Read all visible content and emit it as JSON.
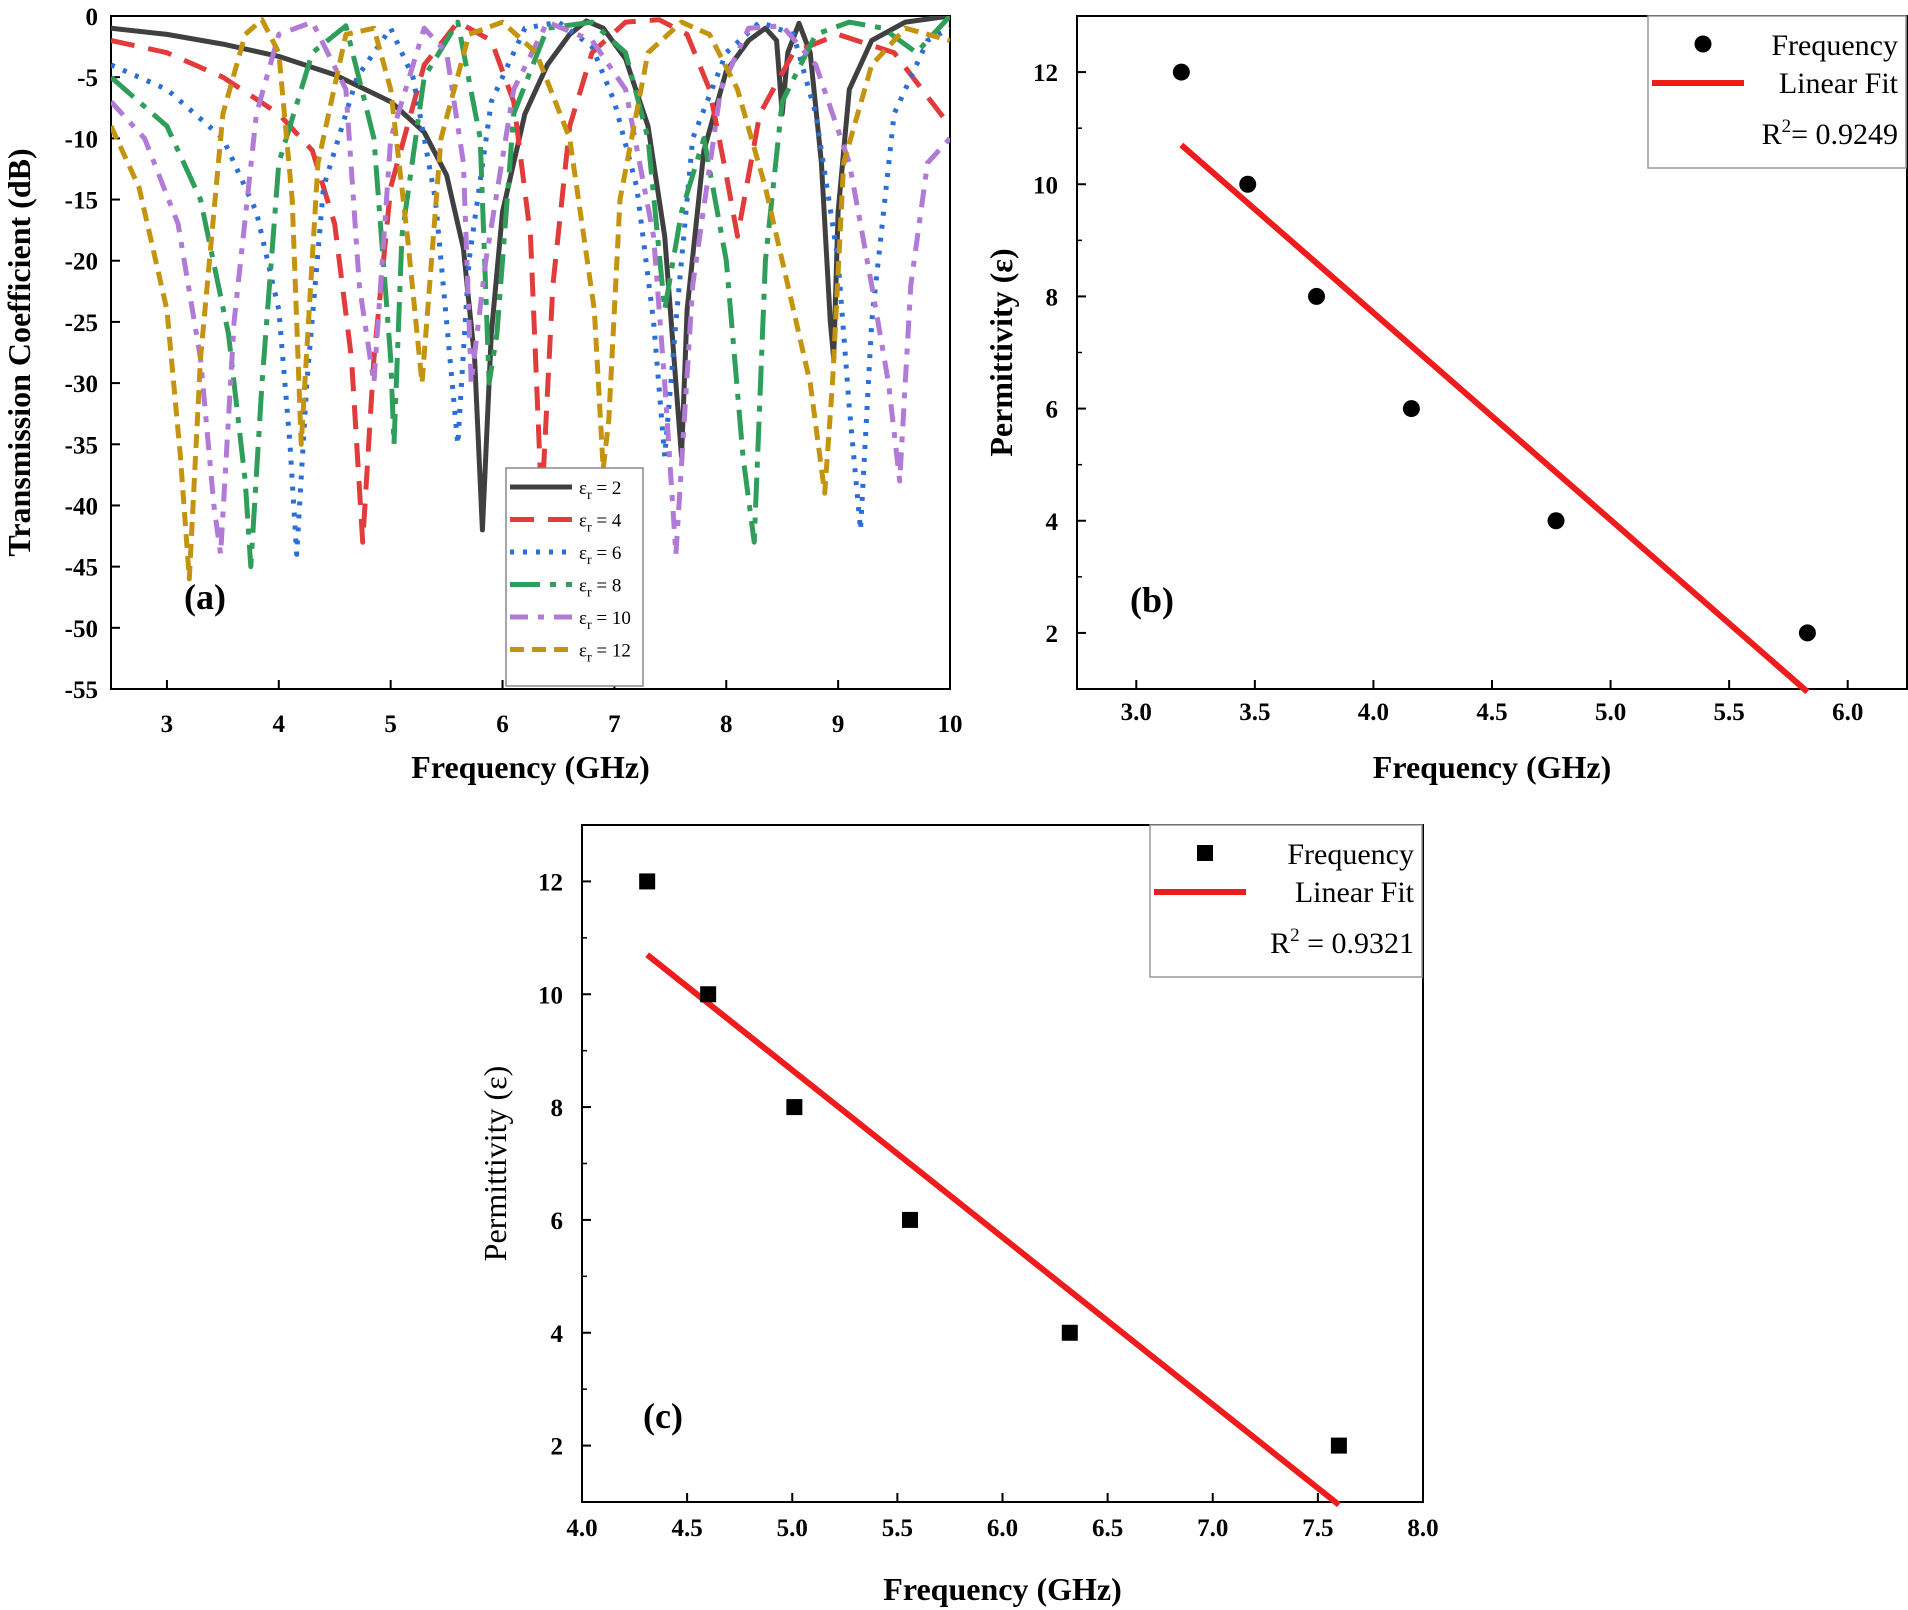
{
  "chart_data": [
    {
      "id": "a",
      "type": "line",
      "panel_label": "(a)",
      "xlabel": "Frequency (GHz)",
      "ylabel": "Transmission Coefficient (dB)",
      "xlim": [
        2.5,
        10
      ],
      "ylim": [
        -55,
        0
      ],
      "xticks": [
        3,
        4,
        5,
        6,
        7,
        8,
        9,
        10
      ],
      "yticks": [
        0,
        -5,
        -10,
        -15,
        -20,
        -25,
        -30,
        -35,
        -40,
        -45,
        -50,
        -55
      ],
      "legend_position": "bottom-center",
      "series": [
        {
          "name": "εr = 2",
          "sub": "r",
          "sym": "ε",
          "val": " = 2",
          "color": "#404040",
          "dash": "solid",
          "width": 5,
          "x": [
            2.5,
            3.0,
            3.5,
            4.0,
            4.5,
            5.0,
            5.3,
            5.5,
            5.65,
            5.75,
            5.82,
            5.9,
            6.0,
            6.2,
            6.4,
            6.6,
            6.75,
            6.9,
            7.1,
            7.3,
            7.45,
            7.55,
            7.6,
            7.65,
            7.8,
            8.0,
            8.2,
            8.35,
            8.45,
            8.5,
            8.55,
            8.65,
            8.75,
            8.85,
            8.93,
            8.96,
            9.0,
            9.1,
            9.3,
            9.6,
            10.0
          ],
          "y": [
            -1,
            -1.5,
            -2.3,
            -3.3,
            -4.8,
            -7,
            -9.5,
            -13,
            -19,
            -28,
            -42,
            -26,
            -16,
            -8,
            -4,
            -1.5,
            -0.4,
            -1,
            -3.5,
            -9,
            -18,
            -30,
            -36,
            -24,
            -11,
            -4.5,
            -2,
            -1,
            -2,
            -8,
            -3,
            -0.6,
            -3,
            -12,
            -25,
            -28,
            -16,
            -6,
            -2,
            -0.5,
            0
          ]
        },
        {
          "name": "εr = 4",
          "sub": "r",
          "sym": "ε",
          "val": " = 4",
          "color": "#e23b3b",
          "dash": "24,14",
          "width": 5,
          "x": [
            2.5,
            3.0,
            3.5,
            4.0,
            4.3,
            4.5,
            4.65,
            4.75,
            4.85,
            5.0,
            5.3,
            5.6,
            5.9,
            6.1,
            6.25,
            6.35,
            6.45,
            6.6,
            6.8,
            7.1,
            7.4,
            7.65,
            7.85,
            8.0,
            8.1,
            8.3,
            8.6,
            9.0,
            9.5,
            10.0
          ],
          "y": [
            -2,
            -3,
            -5,
            -8,
            -11,
            -17,
            -28,
            -43,
            -28,
            -14,
            -4,
            -0.5,
            -2,
            -7,
            -18,
            -40,
            -22,
            -9,
            -3,
            -0.5,
            -0.3,
            -1.5,
            -6,
            -13,
            -18,
            -8,
            -3,
            -1.5,
            -3,
            -9
          ]
        },
        {
          "name": "εr = 6",
          "sub": "r",
          "sym": "ε",
          "val": " = 6",
          "color": "#2a6fd6",
          "dash": "4,9",
          "width": 5,
          "x": [
            2.5,
            3.0,
            3.5,
            3.8,
            4.0,
            4.1,
            4.16,
            4.25,
            4.4,
            4.7,
            5.0,
            5.2,
            5.4,
            5.55,
            5.6,
            5.7,
            5.9,
            6.2,
            6.5,
            6.8,
            7.0,
            7.2,
            7.35,
            7.45,
            7.55,
            7.7,
            8.0,
            8.3,
            8.6,
            8.8,
            9.0,
            9.1,
            9.2,
            9.3,
            9.5,
            9.8,
            10.0
          ],
          "y": [
            -4,
            -6,
            -10,
            -16,
            -24,
            -35,
            -44,
            -30,
            -14,
            -5,
            -1,
            -5,
            -15,
            -30,
            -35,
            -20,
            -7,
            -1,
            -0.5,
            -2.5,
            -7,
            -14,
            -25,
            -36,
            -25,
            -10,
            -3,
            -0.5,
            -1.5,
            -8,
            -20,
            -32,
            -42,
            -25,
            -8,
            -2,
            -1
          ]
        },
        {
          "name": "εr = 8",
          "sub": "r",
          "sym": "ε",
          "val": " = 8",
          "color": "#2f9e5a",
          "dash": "30,10,6,10",
          "width": 5,
          "x": [
            2.5,
            3.0,
            3.3,
            3.55,
            3.7,
            3.75,
            3.85,
            4.0,
            4.3,
            4.6,
            4.85,
            5.0,
            5.03,
            5.1,
            5.3,
            5.6,
            5.8,
            5.88,
            5.95,
            6.1,
            6.4,
            6.8,
            7.1,
            7.3,
            7.45,
            7.6,
            7.8,
            8.0,
            8.15,
            8.25,
            8.35,
            8.5,
            8.8,
            9.1,
            9.4,
            9.7,
            10.0
          ],
          "y": [
            -5,
            -9,
            -15,
            -26,
            -38,
            -45,
            -30,
            -12,
            -3,
            -0.8,
            -10,
            -28,
            -35,
            -18,
            -5,
            -0.5,
            -10,
            -30,
            -26,
            -8,
            -1,
            -0.5,
            -3,
            -10,
            -24,
            -16,
            -10,
            -20,
            -36,
            -43,
            -20,
            -7,
            -1.5,
            -0.5,
            -1,
            -3,
            0
          ]
        },
        {
          "name": "εr = 10",
          "sub": "r",
          "sym": "ε",
          "val": " = 10",
          "color": "#b07ad6",
          "dash": "18,10,6,10",
          "width": 5,
          "x": [
            2.5,
            2.8,
            3.1,
            3.3,
            3.42,
            3.48,
            3.6,
            3.8,
            4.0,
            4.3,
            4.6,
            4.72,
            4.85,
            5.0,
            5.3,
            5.5,
            5.65,
            5.72,
            5.85,
            6.1,
            6.4,
            6.8,
            7.1,
            7.35,
            7.45,
            7.55,
            7.7,
            7.95,
            8.2,
            8.5,
            8.8,
            9.1,
            9.3,
            9.45,
            9.55,
            9.65,
            9.8,
            10.0
          ],
          "y": [
            -7,
            -10,
            -17,
            -28,
            -40,
            -44,
            -25,
            -8,
            -1.5,
            -0.5,
            -6,
            -22,
            -30,
            -10,
            -1,
            -3,
            -12,
            -30,
            -20,
            -6,
            -0.5,
            -2,
            -6,
            -18,
            -30,
            -44,
            -22,
            -6,
            -1,
            -0.8,
            -4,
            -12,
            -22,
            -30,
            -38,
            -22,
            -12,
            -10
          ]
        },
        {
          "name": "εr = 12",
          "sub": "r",
          "sym": "ε",
          "val": " = 12",
          "color": "#c49410",
          "dash": "14,8",
          "width": 5,
          "x": [
            2.5,
            2.75,
            3.0,
            3.12,
            3.2,
            3.3,
            3.5,
            3.7,
            3.85,
            4.0,
            4.12,
            4.2,
            4.35,
            4.6,
            4.85,
            5.0,
            5.15,
            5.28,
            5.45,
            5.7,
            6.0,
            6.3,
            6.6,
            6.82,
            6.9,
            6.95,
            7.05,
            7.3,
            7.6,
            7.85,
            8.1,
            8.35,
            8.55,
            8.75,
            8.88,
            8.95,
            9.05,
            9.3,
            9.6,
            10.0
          ],
          "y": [
            -9,
            -14,
            -24,
            -36,
            -46,
            -28,
            -8,
            -1.5,
            -0.3,
            -3,
            -15,
            -35,
            -12,
            -1.5,
            -1,
            -6,
            -18,
            -30,
            -10,
            -1.5,
            -0.5,
            -3,
            -10,
            -24,
            -37,
            -33,
            -15,
            -3,
            -0.5,
            -1.5,
            -6,
            -14,
            -22,
            -30,
            -39,
            -30,
            -12,
            -4,
            -1,
            -2
          ]
        }
      ]
    },
    {
      "id": "b",
      "type": "scatter",
      "panel_label": "(b)",
      "xlabel": "Frequency (GHz)",
      "ylabel": "Permittivity (ε)",
      "xlim": [
        2.75,
        6.25
      ],
      "ylim": [
        1,
        13
      ],
      "xticks": [
        3.0,
        3.5,
        4.0,
        4.5,
        5.0,
        5.5,
        6.0
      ],
      "yticks": [
        2,
        4,
        6,
        8,
        10,
        12
      ],
      "marker": "circle",
      "points": {
        "x": [
          3.19,
          3.47,
          3.76,
          4.16,
          4.77,
          5.83
        ],
        "y": [
          12,
          10,
          8,
          6,
          4,
          2
        ]
      },
      "fit": {
        "x": [
          3.19,
          5.83
        ],
        "y": [
          10.7,
          0.95
        ],
        "color": "#ee1c1c"
      },
      "legend": {
        "points_label": "Frequency",
        "fit_label": "Linear Fit",
        "r2_prefix": "R",
        "r2_suffix": "= 0.9249"
      }
    },
    {
      "id": "c",
      "type": "scatter",
      "panel_label": "(c)",
      "xlabel": "Frequency (GHz)",
      "ylabel": "Permittivity (ε)",
      "xlim": [
        4.0,
        8.0
      ],
      "ylim": [
        1,
        13
      ],
      "xticks": [
        4.0,
        4.5,
        5.0,
        5.5,
        6.0,
        6.5,
        7.0,
        7.5,
        8.0
      ],
      "yticks": [
        2,
        4,
        6,
        8,
        10,
        12
      ],
      "marker": "square",
      "points": {
        "x": [
          4.31,
          4.6,
          5.01,
          5.56,
          6.32,
          7.6
        ],
        "y": [
          12,
          10,
          8,
          6,
          4,
          2
        ]
      },
      "fit": {
        "x": [
          4.31,
          7.6
        ],
        "y": [
          10.7,
          0.95
        ],
        "color": "#ee1c1c"
      },
      "legend": {
        "points_label": "Frequency",
        "fit_label": "Linear Fit",
        "r2_prefix": "R",
        "r2_suffix": " = 0.9321"
      }
    }
  ]
}
